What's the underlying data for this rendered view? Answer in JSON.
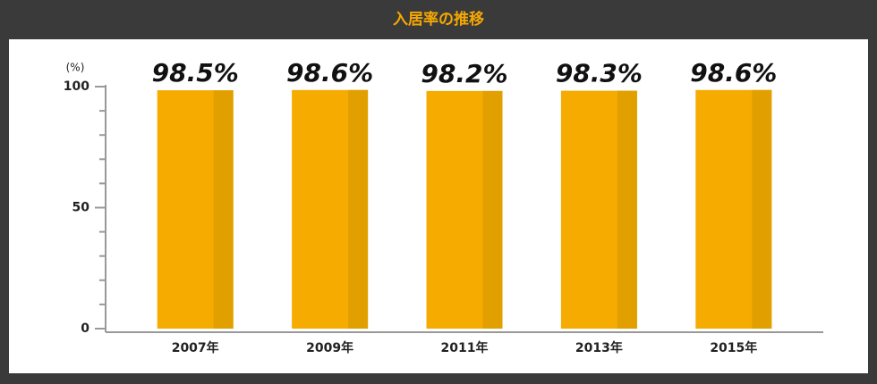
{
  "chart_data": {
    "type": "bar",
    "title": "入居率の推移",
    "y_label": "(%)",
    "categories": [
      "2007年",
      "2009年",
      "2011年",
      "2013年",
      "2015年"
    ],
    "values": [
      98.5,
      98.6,
      98.2,
      98.3,
      98.6
    ],
    "value_labels": [
      "98.5%",
      "98.6%",
      "98.2%",
      "98.3%",
      "98.6%"
    ],
    "color": "#f5ab00",
    "shade_color": "#e2a000",
    "ylim": [
      0,
      100
    ],
    "yticks": [
      0,
      50,
      100
    ],
    "yminor_ticks": [
      10,
      20,
      30,
      40,
      60,
      70,
      80,
      90
    ]
  }
}
